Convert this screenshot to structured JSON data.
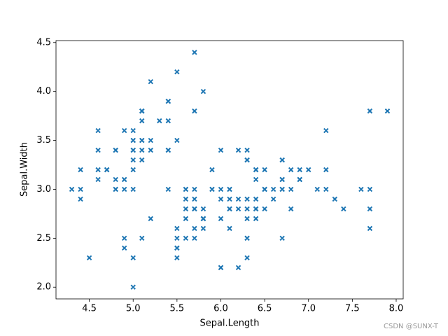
{
  "chart_data": {
    "type": "scatter",
    "xlabel": "Sepal.Length",
    "ylabel": "Sepal.Width",
    "watermark": "CSDN @SUNX-T",
    "marker": "x",
    "color": "#1f77b4",
    "xlim": [
      4.12,
      8.08
    ],
    "ylim": [
      1.88,
      4.52
    ],
    "xticks": [
      4.5,
      {
        "value": 5.0,
        "label": "5.0"
      },
      5.5,
      {
        "value": 6.0,
        "label": "6.0"
      },
      6.5,
      {
        "value": 7.0,
        "label": "7.0"
      },
      7.5,
      {
        "value": 8.0,
        "label": "8.0"
      }
    ],
    "yticks": [
      {
        "value": 2.0,
        "label": "2.0"
      },
      2.5,
      {
        "value": 3.0,
        "label": "3.0"
      },
      3.5,
      {
        "value": 4.0,
        "label": "4.0"
      },
      4.5
    ],
    "x": [
      5.1,
      4.9,
      4.7,
      4.6,
      5.0,
      5.4,
      4.6,
      5.0,
      4.4,
      4.9,
      5.4,
      4.8,
      4.8,
      4.3,
      5.8,
      5.7,
      5.4,
      5.1,
      5.7,
      5.1,
      5.4,
      5.1,
      4.6,
      5.1,
      4.8,
      5.0,
      5.0,
      5.2,
      5.2,
      4.7,
      4.8,
      5.4,
      5.2,
      5.5,
      4.9,
      5.0,
      5.5,
      4.9,
      4.4,
      5.1,
      5.0,
      4.5,
      4.4,
      5.0,
      5.1,
      4.8,
      5.1,
      4.6,
      5.3,
      5.0,
      7.0,
      6.4,
      6.9,
      5.5,
      6.5,
      5.7,
      6.3,
      4.9,
      6.6,
      5.2,
      5.0,
      5.9,
      6.0,
      6.1,
      5.6,
      6.7,
      5.6,
      5.8,
      6.2,
      5.6,
      5.9,
      6.1,
      6.3,
      6.1,
      6.4,
      6.6,
      6.8,
      6.7,
      6.0,
      5.7,
      5.5,
      5.5,
      5.8,
      6.0,
      5.4,
      6.0,
      6.7,
      6.3,
      5.6,
      5.5,
      5.5,
      6.1,
      5.8,
      5.0,
      5.6,
      5.7,
      5.7,
      6.2,
      5.1,
      5.7,
      6.3,
      5.8,
      7.1,
      6.3,
      6.5,
      7.6,
      4.9,
      7.3,
      6.7,
      7.2,
      6.5,
      6.4,
      6.8,
      5.7,
      5.8,
      6.4,
      6.5,
      7.7,
      7.7,
      6.0,
      6.9,
      5.6,
      7.7,
      6.3,
      6.7,
      7.2,
      6.2,
      6.1,
      6.4,
      7.2,
      7.4,
      7.9,
      6.4,
      6.3,
      6.1,
      7.7,
      6.3,
      6.4,
      6.0,
      6.9,
      6.7,
      6.9,
      5.8,
      6.8,
      6.7,
      6.7,
      6.3,
      6.5,
      6.2,
      5.9
    ],
    "values": [
      3.5,
      3.0,
      3.2,
      3.1,
      3.6,
      3.9,
      3.4,
      3.4,
      2.9,
      3.1,
      3.7,
      3.4,
      3.0,
      3.0,
      4.0,
      4.4,
      3.9,
      3.5,
      3.8,
      3.8,
      3.4,
      3.7,
      3.6,
      3.3,
      3.4,
      3.0,
      3.4,
      3.5,
      3.4,
      3.2,
      3.1,
      3.4,
      4.1,
      4.2,
      3.1,
      3.2,
      3.5,
      3.6,
      3.0,
      3.4,
      3.5,
      2.3,
      3.2,
      3.5,
      3.8,
      3.0,
      3.8,
      3.2,
      3.7,
      3.3,
      3.2,
      3.2,
      3.1,
      2.3,
      2.8,
      2.8,
      3.3,
      2.4,
      2.9,
      2.7,
      2.0,
      3.0,
      2.2,
      2.9,
      2.9,
      3.1,
      3.0,
      2.7,
      2.2,
      2.5,
      3.2,
      2.8,
      2.5,
      2.8,
      2.9,
      3.0,
      2.8,
      3.0,
      2.9,
      2.6,
      2.4,
      2.4,
      2.7,
      2.7,
      3.0,
      3.4,
      3.1,
      2.3,
      3.0,
      2.5,
      2.6,
      3.0,
      2.6,
      2.3,
      2.7,
      3.0,
      2.9,
      2.9,
      2.5,
      2.8,
      3.3,
      2.7,
      3.0,
      2.9,
      3.0,
      3.0,
      2.5,
      2.9,
      2.5,
      3.6,
      3.2,
      2.7,
      3.0,
      2.5,
      2.8,
      3.2,
      3.0,
      3.8,
      2.6,
      2.2,
      3.2,
      2.8,
      2.8,
      2.7,
      3.3,
      3.2,
      2.8,
      3.0,
      2.8,
      3.0,
      2.8,
      3.8,
      2.8,
      2.8,
      2.6,
      3.0,
      3.4,
      3.1,
      3.0,
      3.1,
      3.1,
      3.1,
      2.7,
      3.2,
      3.3,
      3.0,
      2.5,
      3.0,
      3.4,
      3.0
    ]
  }
}
